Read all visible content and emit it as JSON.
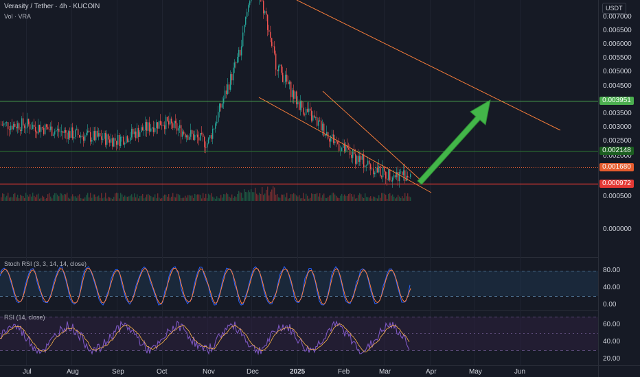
{
  "header": {
    "symbol_line": "Verasity / Tether · 4h · KUCOIN",
    "volume_line": "Vol · VRA"
  },
  "price_axis": {
    "currency": "USDT",
    "ticks": [
      "0.007000",
      "0.006500",
      "0.006000",
      "0.005500",
      "0.005000",
      "0.004500",
      "0.003500",
      "0.003000",
      "0.002500",
      "0.002000",
      "0.000500",
      "0.000000"
    ]
  },
  "price_tags": {
    "resistance": {
      "value": "0.003951",
      "color": "#4caf50"
    },
    "support": {
      "value": "0.002148",
      "color": "#1b5e20"
    },
    "last": {
      "value": "0.001680",
      "color": "#e65c2e"
    },
    "low": {
      "value": "0.000972",
      "color": "#e53935"
    }
  },
  "time_axis": {
    "labels": [
      "Jul",
      "Aug",
      "Sep",
      "Oct",
      "Nov",
      "Dec",
      "2025",
      "Feb",
      "Mar",
      "Apr",
      "May",
      "Jun"
    ]
  },
  "stoch_rsi": {
    "title": "Stoch RSI (3, 3, 14, 14, close)",
    "ticks": [
      "80.00",
      "40.00",
      "0.00"
    ]
  },
  "rsi": {
    "title": "RSI (14, close)",
    "ticks": [
      "60.00",
      "40.00",
      "20.00"
    ]
  },
  "colors": {
    "background": "#161a25",
    "candle_up": "#26a69a",
    "candle_down": "#ef5350",
    "channel": "#f57c3a",
    "arrow": "#43b649",
    "stoch_k": "#2962ff",
    "stoch_d": "#ff7f3f",
    "rsi_line": "#7e57c2"
  },
  "chart_data": {
    "type": "candlestick",
    "price_series_approx": [
      {
        "period": "Jul",
        "price": 0.0034
      },
      {
        "period": "Aug",
        "price": 0.0031
      },
      {
        "period": "Sep",
        "price": 0.0029
      },
      {
        "period": "Oct",
        "price": 0.0035
      },
      {
        "period": "Nov",
        "price": 0.0028
      },
      {
        "period": "Dec",
        "price": 0.0068
      },
      {
        "period": "2025",
        "price": 0.0041
      },
      {
        "period": "Feb",
        "price": 0.0026
      },
      {
        "period": "Mar",
        "price": 0.0018
      }
    ],
    "horizontal_levels": [
      0.003951,
      0.002148,
      0.00168,
      0.000972
    ],
    "yrange": [
      0.0,
      0.0073
    ]
  }
}
